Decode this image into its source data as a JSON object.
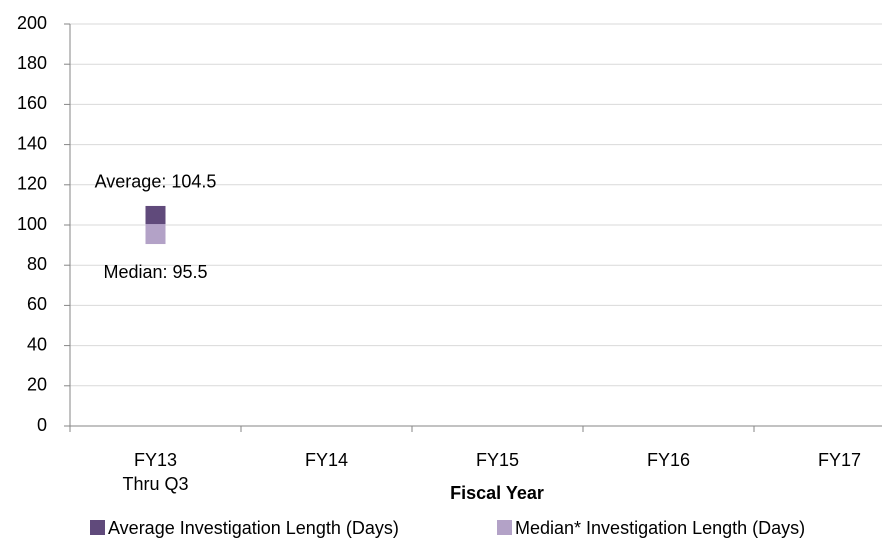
{
  "chart_data": {
    "type": "line",
    "x_label": "Fiscal Year",
    "categories": [
      "FY13\nThru  Q3",
      "FY14",
      "FY15",
      "FY16",
      "FY17"
    ],
    "series": [
      {
        "name": "Average Investigation Length (Days)",
        "color": "#604a7b",
        "values": [
          104.5,
          null,
          null,
          null,
          null
        ],
        "value_labels": [
          "Average: 104.5",
          null,
          null,
          null,
          null
        ]
      },
      {
        "name": "Median* Investigation Length (Days)",
        "color": "#b3a2c7",
        "values": [
          95.5,
          null,
          null,
          null,
          null
        ],
        "value_labels": [
          "Median: 95.5",
          null,
          null,
          null,
          null
        ]
      }
    ],
    "ylim": [
      0,
      200
    ],
    "yticks": [
      0,
      20,
      40,
      60,
      80,
      100,
      120,
      140,
      160,
      180,
      200
    ],
    "grid": true,
    "legend": "bottom"
  }
}
